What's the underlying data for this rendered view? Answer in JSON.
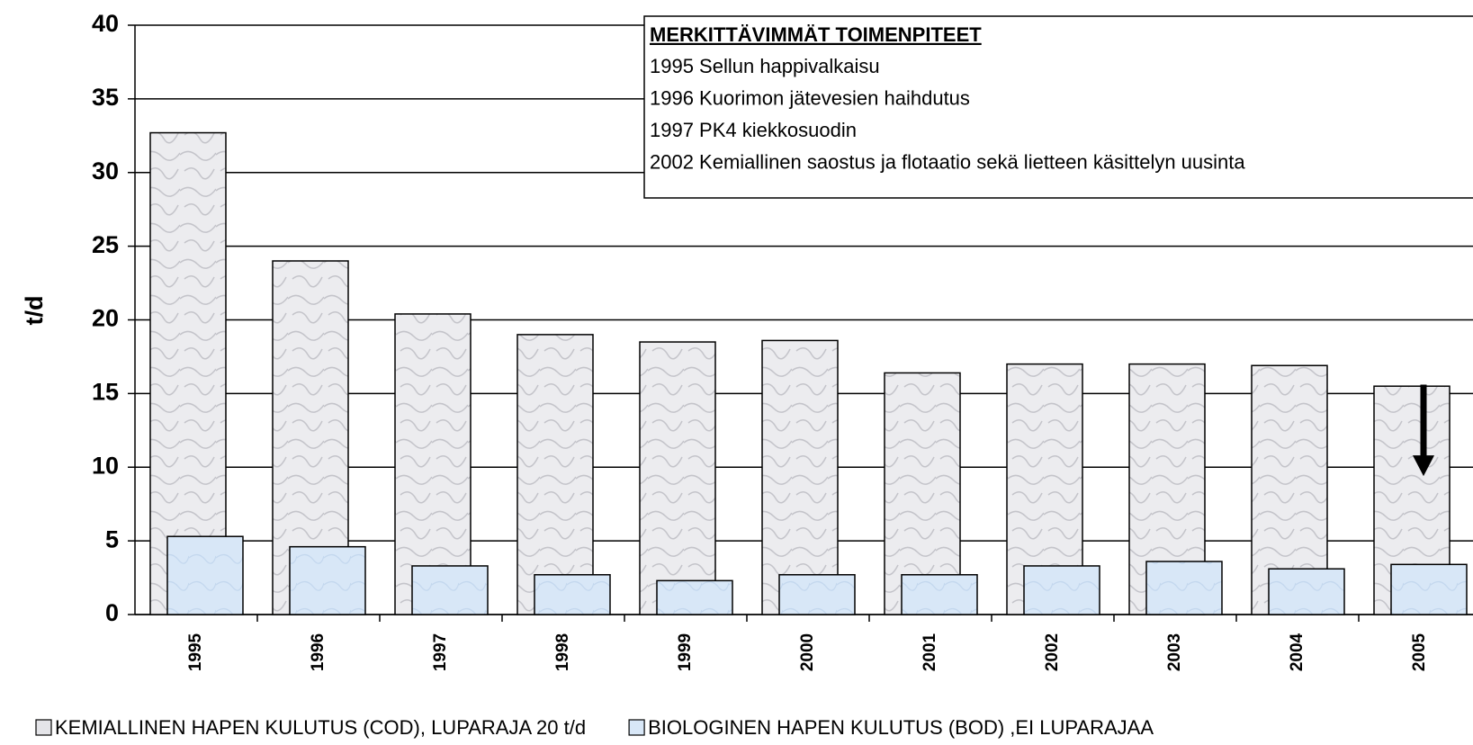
{
  "chart_data": {
    "type": "bar",
    "y_label": "t/d",
    "categories": [
      "1995",
      "1996",
      "1997",
      "1998",
      "1999",
      "2000",
      "2001",
      "2002",
      "2003",
      "2004",
      "2005"
    ],
    "series": [
      {
        "name": "KEMIALLINEN HAPEN KULUTUS (COD), LUPARAJA 20 t/d",
        "color": "#e4e4e8",
        "values": [
          32.7,
          24,
          20.4,
          19,
          18.5,
          18.6,
          16.4,
          17,
          17,
          16.9,
          15.5
        ]
      },
      {
        "name": "BIOLOGINEN HAPEN KULUTUS (BOD) ,EI LUPARAJAA",
        "color": "#d8e7f7",
        "values": [
          5.3,
          4.6,
          3.3,
          2.7,
          2.3,
          2.7,
          2.7,
          3.3,
          3.6,
          3.1,
          3.4
        ]
      }
    ],
    "annotation": {
      "title": "MERKITTÄVIMMÄT TOIMENPITEET",
      "lines": [
        "1995 Sellun happivalkaisu",
        "1996 Kuorimon jätevesien haihdutus",
        "1997 PK4 kiekkosuodin",
        "2002 Kemiallinen saostus ja flotaatio sekä lietteen käsittelyn uusinta"
      ]
    },
    "ylim": [
      0,
      40
    ],
    "yticks": [
      0,
      5,
      10,
      15,
      20,
      25,
      30,
      35,
      40
    ],
    "grid": true
  }
}
